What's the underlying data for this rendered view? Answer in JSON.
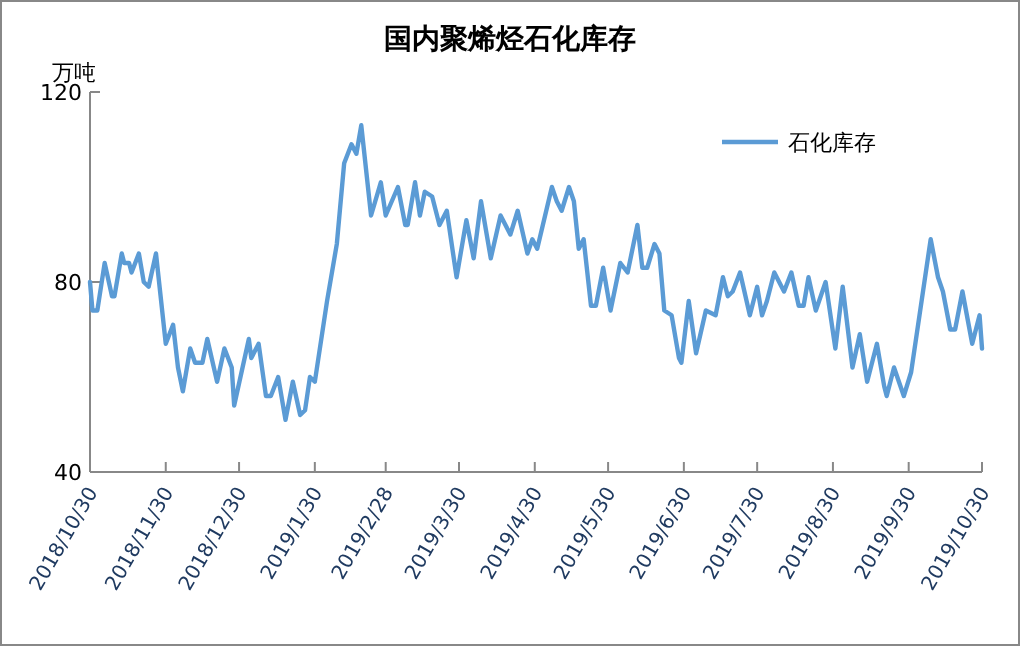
{
  "chart_data": {
    "type": "line",
    "title": "国内聚烯烃石化库存",
    "ylabel": "万吨",
    "xlim": [
      "2018-10-30",
      "2019-10-30"
    ],
    "xticks": [
      {
        "value": "2018-10-30",
        "label": "2018/10/30"
      },
      {
        "value": "2018-11-30",
        "label": "2018/11/30"
      },
      {
        "value": "2018-12-30",
        "label": "2018/12/30"
      },
      {
        "value": "2019-01-30",
        "label": "2019/1/30"
      },
      {
        "value": "2019-02-28",
        "label": "2019/2/28"
      },
      {
        "value": "2019-03-30",
        "label": "2019/3/30"
      },
      {
        "value": "2019-04-30",
        "label": "2019/4/30"
      },
      {
        "value": "2019-05-30",
        "label": "2019/5/30"
      },
      {
        "value": "2019-06-30",
        "label": "2019/6/30"
      },
      {
        "value": "2019-07-30",
        "label": "2019/7/30"
      },
      {
        "value": "2019-08-30",
        "label": "2019/8/30"
      },
      {
        "value": "2019-09-30",
        "label": "2019/9/30"
      },
      {
        "value": "2019-10-30",
        "label": "2019/10/30"
      }
    ],
    "ylim": [
      40,
      120
    ],
    "yticks": [
      40,
      80,
      120
    ],
    "grid": false,
    "legend": "top right",
    "line_style": "solid",
    "series": [
      {
        "name": "石化库存",
        "color": "#5b9bd5",
        "x": [
          "2018-10-30",
          "2018-10-31",
          "2018-11-02",
          "2018-11-05",
          "2018-11-08",
          "2018-11-09",
          "2018-11-12",
          "2018-11-13",
          "2018-11-15",
          "2018-11-16",
          "2018-11-19",
          "2018-11-21",
          "2018-11-23",
          "2018-11-26",
          "2018-11-30",
          "2018-12-03",
          "2018-12-05",
          "2018-12-07",
          "2018-12-10",
          "2018-12-12",
          "2018-12-15",
          "2018-12-17",
          "2018-12-21",
          "2018-12-24",
          "2018-12-27",
          "2018-12-28",
          "2019-01-03",
          "2019-01-04",
          "2019-01-07",
          "2019-01-10",
          "2019-01-12",
          "2019-01-15",
          "2019-01-18",
          "2019-01-21",
          "2019-01-24",
          "2019-01-26",
          "2019-01-28",
          "2019-01-30",
          "2019-02-04",
          "2019-02-08",
          "2019-02-11",
          "2019-02-14",
          "2019-02-16",
          "2019-02-18",
          "2019-02-22",
          "2019-02-26",
          "2019-02-28",
          "2019-03-05",
          "2019-03-08",
          "2019-03-09",
          "2019-03-12",
          "2019-03-14",
          "2019-03-16",
          "2019-03-19",
          "2019-03-22",
          "2019-03-25",
          "2019-03-29",
          "2019-04-02",
          "2019-04-05",
          "2019-04-08",
          "2019-04-12",
          "2019-04-16",
          "2019-04-20",
          "2019-04-23",
          "2019-04-27",
          "2019-04-29",
          "2019-05-01",
          "2019-05-07",
          "2019-05-09",
          "2019-05-11",
          "2019-05-14",
          "2019-05-16",
          "2019-05-18",
          "2019-05-20",
          "2019-05-23",
          "2019-05-25",
          "2019-05-28",
          "2019-05-31",
          "2019-06-04",
          "2019-06-07",
          "2019-06-11",
          "2019-06-13",
          "2019-06-15",
          "2019-06-18",
          "2019-06-20",
          "2019-06-22",
          "2019-06-25",
          "2019-06-28",
          "2019-06-29",
          "2019-07-02",
          "2019-07-05",
          "2019-07-09",
          "2019-07-13",
          "2019-07-16",
          "2019-07-18",
          "2019-07-20",
          "2019-07-23",
          "2019-07-27",
          "2019-07-30",
          "2019-08-01",
          "2019-08-03",
          "2019-08-06",
          "2019-08-10",
          "2019-08-13",
          "2019-08-16",
          "2019-08-18",
          "2019-08-20",
          "2019-08-23",
          "2019-08-27",
          "2019-08-31",
          "2019-09-03",
          "2019-09-07",
          "2019-09-10",
          "2019-09-13",
          "2019-09-17",
          "2019-09-20",
          "2019-09-21",
          "2019-09-24",
          "2019-09-28",
          "2019-10-01",
          "2019-10-09",
          "2019-10-12",
          "2019-10-14",
          "2019-10-17",
          "2019-10-19",
          "2019-10-22",
          "2019-10-26",
          "2019-10-29",
          "2019-10-30"
        ],
        "values": [
          80,
          74,
          74,
          84,
          77,
          77,
          86,
          84,
          84,
          82,
          86,
          80,
          79,
          86,
          67,
          71,
          62,
          57,
          66,
          63,
          63,
          68,
          59,
          66,
          62,
          54,
          68,
          64,
          67,
          56,
          56,
          60,
          51,
          59,
          52,
          53,
          60,
          59,
          76,
          88,
          105,
          109,
          107,
          113,
          94,
          101,
          94,
          100,
          92,
          92,
          101,
          94,
          99,
          98,
          92,
          95,
          81,
          93,
          85,
          97,
          85,
          94,
          90,
          95,
          86,
          89,
          87,
          100,
          97,
          95,
          100,
          97,
          87,
          89,
          75,
          75,
          83,
          74,
          84,
          82,
          92,
          83,
          83,
          88,
          86,
          74,
          73,
          64,
          63,
          76,
          65,
          74,
          73,
          81,
          77,
          78,
          82,
          73,
          79,
          73,
          76,
          82,
          78,
          82,
          75,
          75,
          81,
          74,
          80,
          66,
          79,
          62,
          69,
          59,
          67,
          58,
          56,
          62,
          56,
          61,
          89,
          81,
          78,
          70,
          70,
          78,
          67,
          73,
          66
        ]
      }
    ]
  }
}
